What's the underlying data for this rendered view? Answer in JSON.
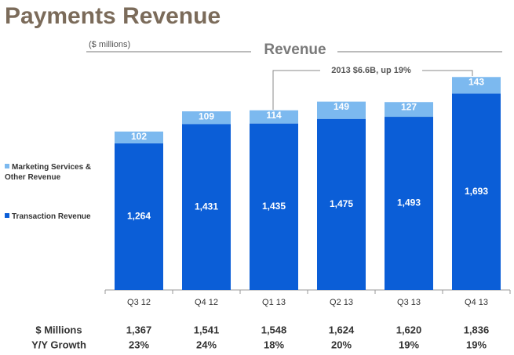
{
  "chart_data": {
    "type": "stacked_bar",
    "title": "Payments Revenue",
    "subtitle": "($ millions)",
    "chart_title": "Revenue",
    "annotation": "2013 $6.6B, up 19%",
    "categories": [
      "Q3 12",
      "Q4 12",
      "Q1 13",
      "Q2 13",
      "Q3 13",
      "Q4 13"
    ],
    "series": [
      {
        "name": "Transaction Revenue",
        "color": "#0b5ed7",
        "values": [
          1264,
          1431,
          1435,
          1475,
          1493,
          1693
        ],
        "value_labels": [
          "1,264",
          "1,431",
          "1,435",
          "1,475",
          "1,493",
          "1,693"
        ]
      },
      {
        "name": "Marketing Services & Other Revenue",
        "color": "#7cb9ef",
        "values": [
          102,
          109,
          114,
          149,
          127,
          143
        ]
      }
    ],
    "ylim": [
      0,
      2000
    ],
    "legend": "left",
    "table": {
      "rows": [
        {
          "label": "$ Millions",
          "values": [
            "1,367",
            "1,541",
            "1,548",
            "1,624",
            "1,620",
            "1,836"
          ]
        },
        {
          "label": "Y/Y Growth",
          "values": [
            "23%",
            "24%",
            "18%",
            "20%",
            "19%",
            "19%"
          ]
        }
      ]
    }
  }
}
